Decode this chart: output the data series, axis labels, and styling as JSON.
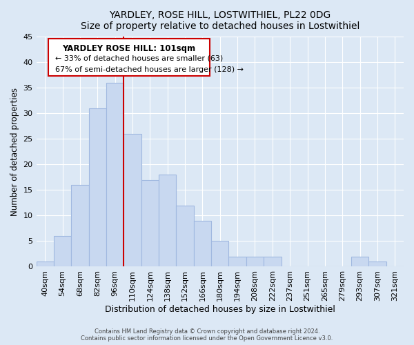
{
  "title": "YARDLEY, ROSE HILL, LOSTWITHIEL, PL22 0DG",
  "subtitle": "Size of property relative to detached houses in Lostwithiel",
  "xlabel": "Distribution of detached houses by size in Lostwithiel",
  "ylabel": "Number of detached properties",
  "bar_color": "#c8d8f0",
  "bar_edge_color": "#a0b8e0",
  "bins": [
    "40sqm",
    "54sqm",
    "68sqm",
    "82sqm",
    "96sqm",
    "110sqm",
    "124sqm",
    "138sqm",
    "152sqm",
    "166sqm",
    "180sqm",
    "194sqm",
    "208sqm",
    "222sqm",
    "237sqm",
    "251sqm",
    "265sqm",
    "279sqm",
    "293sqm",
    "307sqm",
    "321sqm"
  ],
  "values": [
    1,
    6,
    16,
    31,
    36,
    26,
    17,
    18,
    12,
    9,
    5,
    2,
    2,
    2,
    0,
    0,
    0,
    0,
    2,
    1,
    0
  ],
  "ylim": [
    0,
    45
  ],
  "yticks": [
    0,
    5,
    10,
    15,
    20,
    25,
    30,
    35,
    40,
    45
  ],
  "property_line_x": 4,
  "property_line_color": "#cc0000",
  "annotation_title": "YARDLEY ROSE HILL: 101sqm",
  "annotation_line1": "← 33% of detached houses are smaller (63)",
  "annotation_line2": "67% of semi-detached houses are larger (128) →",
  "annotation_box_color": "#ffffff",
  "annotation_box_edge": "#cc0000",
  "footer1": "Contains HM Land Registry data © Crown copyright and database right 2024.",
  "footer2": "Contains public sector information licensed under the Open Government Licence v3.0.",
  "background_color": "#dce8f5",
  "plot_background": "#dce8f5"
}
